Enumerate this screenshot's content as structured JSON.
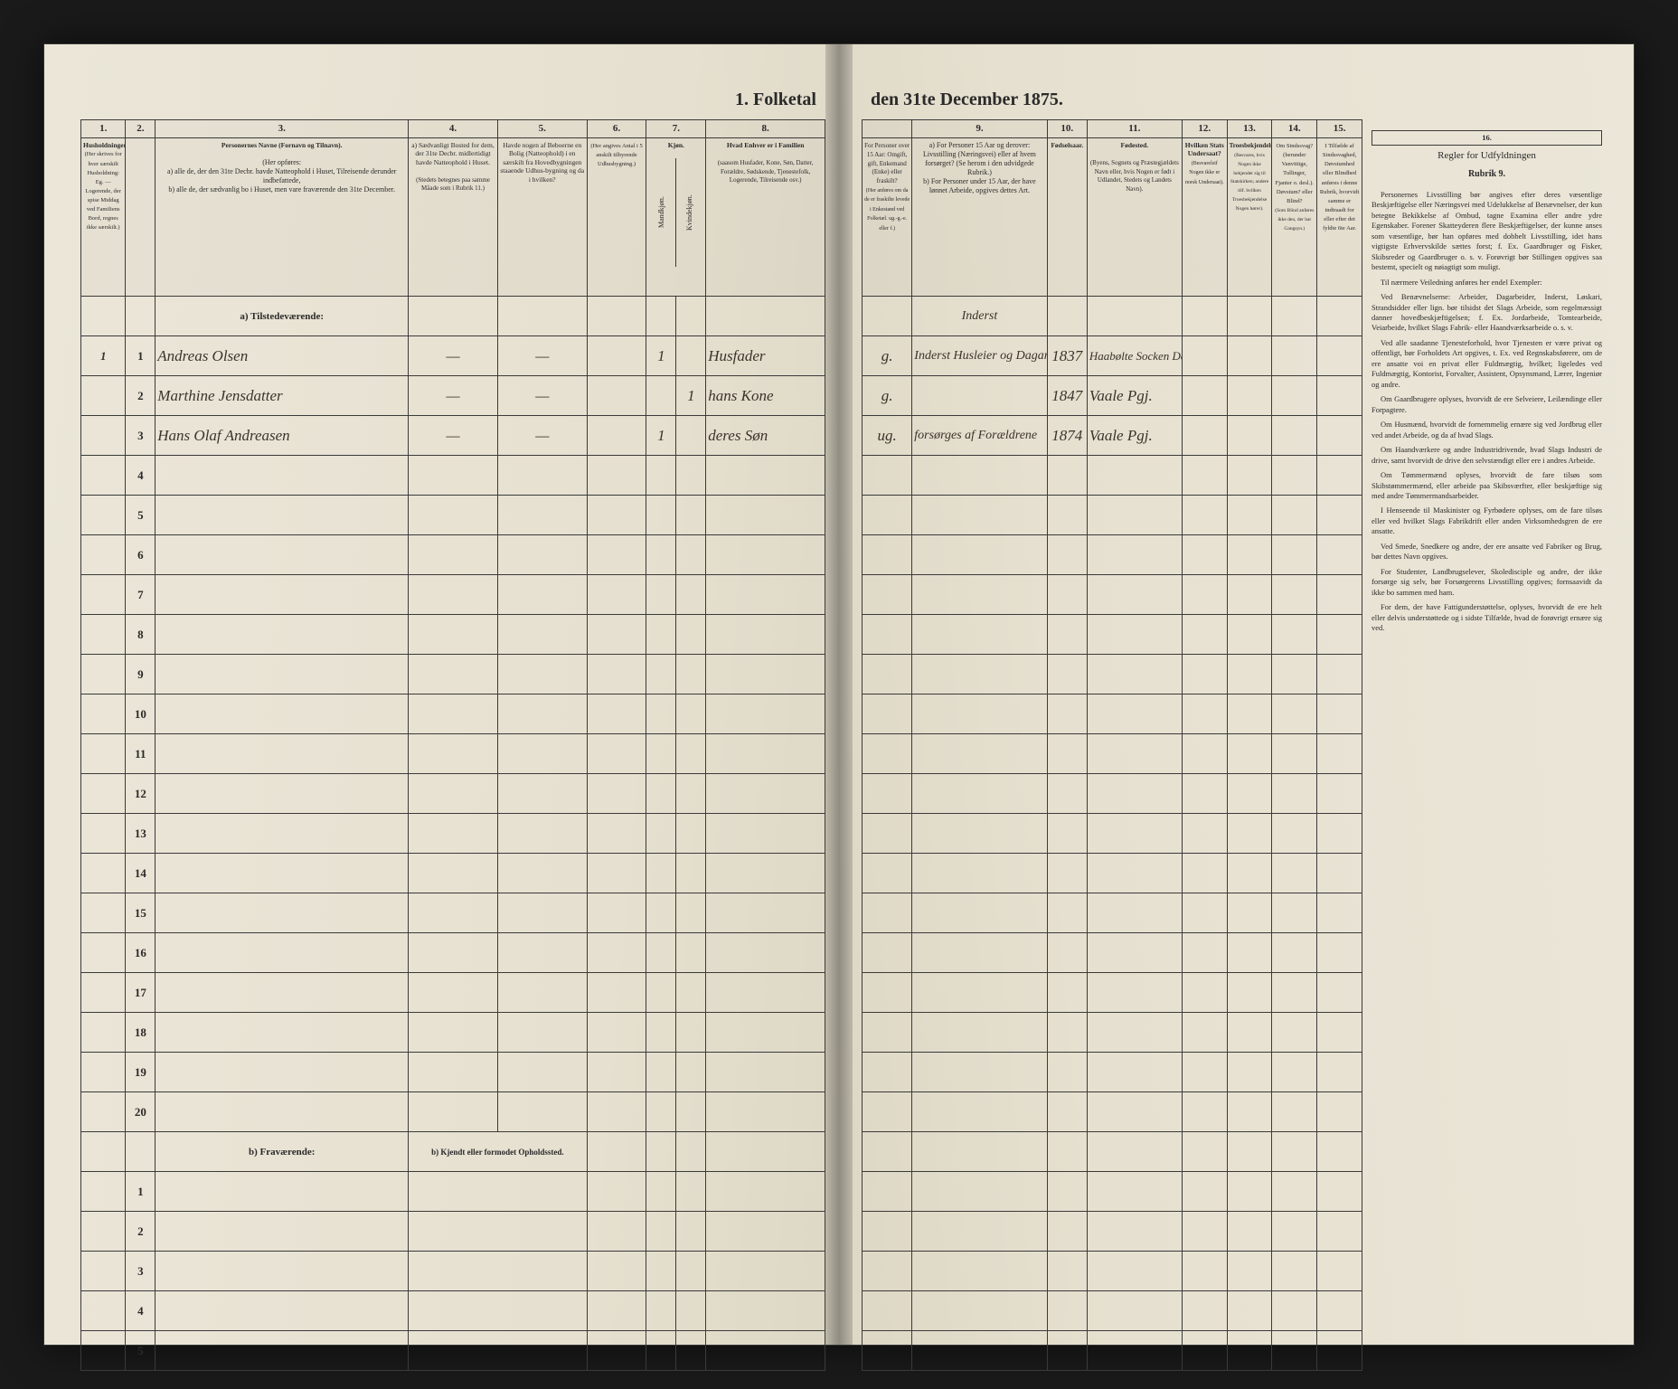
{
  "title_left": "1. Folketal",
  "title_right": "den 31te December 1875.",
  "left_page": {
    "colnums": [
      "1.",
      "2.",
      "3.",
      "4.",
      "5.",
      "6.",
      "7.",
      "8."
    ],
    "headers": {
      "c1": "Husholdninger.",
      "c1_sub": "(Her skrives for hver særskilt Husholdning: Eg. — Logerende, der spise Middag ved Familiens Bord, regnes ikke særskilt.)",
      "c2": "",
      "c3": "Personernes Navne (Fornavn og Tilnavn).",
      "c3_sub": "(Her opføres:\na) alle de, der den 31te Decbr. havde Natteophold i Huset, Tilreisende derunder indbefattede,\nb) alle de, der sædvanlig bo i Huset, men vare fraværende den 31te December.",
      "c4": "a) Sædvanligt Bosted for dem, der 31te Decbr. midlertidigt havde Natteophold i Huset.",
      "c4_sub": "(Stedets betegnes paa samme Måade som i Rubrik 11.)",
      "c5": "Havde nogen af Beboerne en Bolig (Natteophold) i en særskilt fra Hovedbygningen staaende Udhus-bygning og da i hvilken?",
      "c6": "(Her angives Antal i 5 anskilt tilbyrende Udhusbygning.)",
      "c7": "Kjøn.",
      "c7_sub_m": "Mandkjøn.",
      "c7_sub_k": "Kvindekjøn.",
      "c8": "Hvad Enhver er i Familien",
      "c8_sub": "(saasom Husfader, Kone, Søn, Datter, Forældre, Sødskende, Tjenestefolk, Logerende, Tilreisende osv.)"
    },
    "section_a": "a) Tilstedeværende:",
    "section_b": "b) Fraværende:",
    "section_b2": "b) Kjendt eller formodet Opholdssted.",
    "rows": [
      {
        "n": "1",
        "p": "1",
        "name": "Andreas Olsen",
        "c4": "—",
        "c5": "—",
        "c6": "",
        "m": "1",
        "k": "",
        "fam": "Husfader"
      },
      {
        "n": "",
        "p": "2",
        "name": "Marthine Jensdatter",
        "c4": "—",
        "c5": "—",
        "c6": "",
        "m": "",
        "k": "1",
        "fam": "hans Kone"
      },
      {
        "n": "",
        "p": "3",
        "name": "Hans Olaf Andreasen",
        "c4": "—",
        "c5": "—",
        "c6": "",
        "m": "1",
        "k": "",
        "fam": "deres Søn"
      }
    ]
  },
  "right_page": {
    "colnums": [
      "",
      "9.",
      "10.",
      "11.",
      "12.",
      "13.",
      "14.",
      "15.",
      "16."
    ],
    "headers": {
      "c8b": "For Personer over 15 Aar: Omgift, gift, Enkemand (Enke) eller fraskilt?",
      "c8b_sub": "(Her anføres om da de er fraskilte levede i Enkestand ved Folketæl. ug.-g.-e. eller f.)",
      "c9": "a) For Personer 15 Aar og derover: Livsstilling (Næringsvei) eller af hvem forsørget? (Se herom i den udvidgede Rubrik.)\nb) For Personer under 15 Aar, der have lønnet Arbeide, opgives dettes Art.",
      "c10": "Fødselsaar.",
      "c11": "Fødested.",
      "c11_sub": "(Byens, Sognets og Præstegjældets Navn eller, hvis Nogen er født i Udlandet, Stedets og Landets Navn).",
      "c12": "Hvilken Stats Undersaat?",
      "c12_sub": "(Besvarelsif Nogen ikke er norsk Undersaat).",
      "c13": "Troesbekjendelse.",
      "c13_sub": "(Besvares, hvis Nogen ikke bekjender sig til Statskirken; andere tilf. hvilken Troesbekjendelse Nogen hører).",
      "c14": "Om Sindssvag? (herunder Vanvittige, Tullinger, Fjanter o. desl.). Døvstum? eller Blind?",
      "c14_sub": "(Som Blind anføres ikke den, der har Gangsyn.)",
      "c15": "I Tilfælde af Sindssvaghed, Døvstumhed eller Blindhed anføres i denne Rubrik, hvorvidt samme er indtraadt for eller efter det fyldte 6te Aar."
    },
    "rows": [
      {
        "ms": "g.",
        "occ": "Inderst Husleier og Dagarbeider",
        "yr": "1837",
        "place": "Haabølte Socken Dæleland Norge",
        "c12": "",
        "c13": "",
        "c14": "",
        "c15": ""
      },
      {
        "ms": "g.",
        "occ": "",
        "yr": "1847",
        "place": "Vaale Pgj.",
        "c12": "",
        "c13": "",
        "c14": "",
        "c15": ""
      },
      {
        "ms": "ug.",
        "occ": "forsørges af Forældrene",
        "yr": "1874",
        "place": "Vaale Pgj.",
        "c12": "",
        "c13": "",
        "c14": "",
        "c15": ""
      }
    ],
    "instructions": {
      "heading": "Regler for Udfyldningen",
      "sub": "Rubrik 9.",
      "paras": [
        "Personernes Livsstilling bør angives efter deres væsentlige Beskjæftigelse eller Næringsvei med Udelukkelse af Benævnelser, der kun betegne Bekikkelse af Ombud, tagne Examina eller andre ydre Egenskaber. Forener Skatteyderen flere Beskjæftigelser, der kunne anses som væsentlige, bør han opføres med dobbelt Livsstilling, idet hans vigtigste Erhvervskilde sættes forst; f. Ex. Gaardbruger og Fisker, Skibsreder og Gaardbruger o. s. v. Forøvrigt bør Stillingen opgives saa bestemt, specielt og nøiagtigt som muligt.",
        "Til nærmere Veiledning anføres her endel Exempler:",
        "Ved Benævnelserne: Arbeider, Dagarbeider, Inderst, Løskari, Strandsidder eller lign. bør tilsidst det Slags Arbeide, som regelmæssigt danner hovedbeskjæftigelsen; f. Ex. Jordarbeide, Tomtearbeide, Veiarbeide, hvilket Slags Fabrik- eller Haandværksarbeide o. s. v.",
        "Ved alle saadanne Tjenesteforhold, hvor Tjenesten er være privat og offentligt, bør Forholdets Art opgives, t. Ex. ved Regnskabsførere, om de ere ansatte voi en privat eller Fuldmægtig, hvilket; ligeledes ved Fuldmægtig, Kontorist, Forvalter, Assistent, Opsynsmand, Lærer, Ingeniør og andre.",
        "Om Gaardbrugere oplyses, hvorvidt de ere Selveiere, Leilændinge eller Forpagtere.",
        "Om Husmænd, hvorvidt de fornemmelig ernære sig ved Jordbrug eller ved andet Arbeide, og da af hvad Slags.",
        "Om Haandværkere og andre Industridrivende, hvad Slags Industri de drive, samt hvorvidt de drive den selvstændigt eller ere i andres Arbeide.",
        "Om Tømmermænd oplyses, hvorvidt de fare tilsøs som Skibstømmermænd, eller arbeide paa Skibsværfter, eller beskjæftige sig med andre Tømmermandsarbeider.",
        "I Henseende til Maskinister og Fyrbødere oplyses, om de fare tilsøs eller ved hvilket Slags Fabrikdrift eller anden Virksomhedsgren de ere ansatte.",
        "Ved Smede, Snedkere og andre, der ere ansatte ved Fabriker og Brug, bør dettes Navn opgives.",
        "For Studenter, Landbrugselever, Skoledisciple og andre, der ikke forsørge sig selv, bør Forsørgerens Livsstilling opgives; fornsaavidt da ikke bo sammen med ham.",
        "For dem, der have Fattigunderstøttelse, oplyses, hvorvidt de ere helt eller delvis understøttede og i sidste Tilfælde, hvad de forøvrigt ernære sig ved."
      ]
    }
  }
}
